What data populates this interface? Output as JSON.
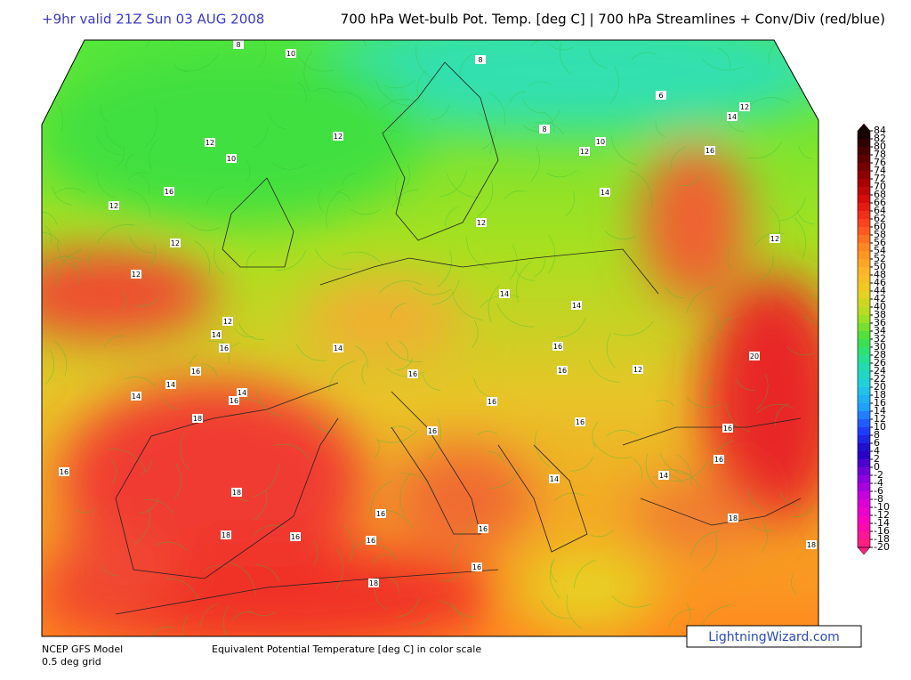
{
  "header": {
    "run_label": "+9hr valid 21Z Sun 03 AUG 2008",
    "title": "700 hPa Wet-bulb Pot. Temp. [deg C] | 700 hPa Streamlines + Conv/Div (red/blue)"
  },
  "footer": {
    "model": "NCEP GFS Model",
    "grid": "0.5 deg grid",
    "scale_note": "Equivalent Potential Temperature [deg C] in color scale",
    "credit": "LightningWizard.com"
  },
  "colorbar": {
    "ticks": [
      84,
      82,
      80,
      78,
      76,
      74,
      72,
      70,
      68,
      66,
      64,
      62,
      60,
      58,
      56,
      54,
      52,
      50,
      48,
      46,
      44,
      42,
      40,
      38,
      36,
      34,
      32,
      30,
      28,
      26,
      24,
      22,
      20,
      18,
      16,
      14,
      12,
      10,
      8,
      6,
      4,
      2,
      0,
      -2,
      -4,
      -6,
      -8,
      -10,
      -12,
      -14,
      -16,
      -18,
      -20
    ],
    "colors": [
      "#1a0000",
      "#5a0000",
      "#a00000",
      "#e01010",
      "#ff4a20",
      "#ff8a20",
      "#ffb428",
      "#e8d020",
      "#a8e020",
      "#40e040",
      "#20e0a0",
      "#20d0e0",
      "#20a0ff",
      "#2040ff",
      "#2000c0",
      "#8000e0",
      "#d000e0",
      "#ff00c0",
      "#ff2080"
    ]
  },
  "contour_labels": [
    "8",
    "10",
    "8",
    "6",
    "12",
    "14",
    "8",
    "10",
    "12",
    "12",
    "12",
    "10",
    "16",
    "16",
    "14",
    "12",
    "12",
    "12",
    "12",
    "12",
    "14",
    "14",
    "12",
    "14",
    "16",
    "14",
    "16",
    "16",
    "16",
    "16",
    "12",
    "20",
    "14",
    "14",
    "14",
    "16",
    "16",
    "16",
    "18",
    "16",
    "16",
    "16",
    "16",
    "14",
    "14",
    "18",
    "16",
    "18",
    "18",
    "16",
    "16",
    "16",
    "16",
    "18",
    "18"
  ]
}
